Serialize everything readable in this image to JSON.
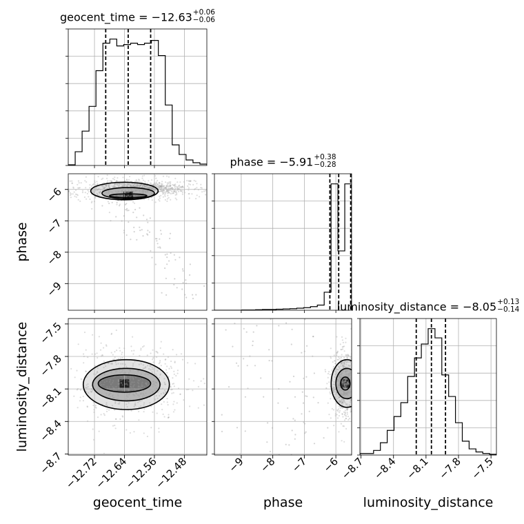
{
  "chart_data": {
    "type": "corner",
    "parameters": [
      {
        "name": "geocent_time",
        "axis_label": "geocent_time",
        "median": "−12.63",
        "plus": "+0.06",
        "minus": "−0.06",
        "title_prefix": "geocent_time = ",
        "quantiles": [
          -12.69,
          -12.63,
          -12.57
        ],
        "range": [
          -12.79,
          -12.42
        ],
        "ticks": [
          -12.72,
          -12.64,
          -12.56,
          -12.48
        ],
        "tick_labels": [
          "−12.72",
          "−12.64",
          "−12.56",
          "−12.48"
        ],
        "hist_bin_edges_range": [
          -12.79,
          -12.42
        ],
        "hist_counts": [
          0.05,
          1.0,
          2.5,
          4.3,
          6.9,
          8.9,
          9.2,
          8.7,
          8.8,
          8.9,
          8.8,
          8.9,
          9.1,
          8.0,
          4.4,
          1.5,
          0.8,
          0.4,
          0.2,
          0.1
        ]
      },
      {
        "name": "phase",
        "axis_label": "phase",
        "median": "−5.91",
        "plus": "+0.38",
        "minus": "−0.28",
        "title_prefix": "phase = ",
        "quantiles": [
          -6.19,
          -5.91,
          -5.53
        ],
        "range": [
          -9.85,
          -5.5
        ],
        "ticks": [
          -9,
          -8,
          -7,
          -6
        ],
        "tick_labels": [
          "−9",
          "−8",
          "−7",
          "−6"
        ],
        "hist_bin_edges_range": [
          -9.85,
          -5.5
        ],
        "hist_counts": [
          0,
          0,
          0,
          0,
          0.01,
          0.01,
          0.02,
          0.03,
          0.03,
          0.04,
          0.05,
          0.06,
          0.08,
          0.1,
          0.14,
          0.2,
          0.7,
          4.9,
          2.3,
          4.9
        ]
      },
      {
        "name": "luminosity_distance",
        "axis_label": "luminosity_distance",
        "median": "−8.05",
        "plus": "+0.13",
        "minus": "−0.14",
        "title_prefix": "luminosity_distance = ",
        "quantiles": [
          -8.19,
          -8.05,
          -7.92
        ],
        "range": [
          -8.71,
          -7.45
        ],
        "ticks": [
          -8.7,
          -8.4,
          -8.1,
          -7.8,
          -7.5
        ],
        "tick_labels": [
          "−8.7",
          "−8.4",
          "−8.1",
          "−7.8",
          "−7.5"
        ],
        "hist_bin_edges_range": [
          -8.71,
          -7.45
        ],
        "hist_counts": [
          0.1,
          0.1,
          0.3,
          0.8,
          1.6,
          2.5,
          3.4,
          5.1,
          6.3,
          7.2,
          8.2,
          7.6,
          5.2,
          3.8,
          2.1,
          0.9,
          0.4,
          0.2,
          0.1,
          0.05
        ]
      }
    ],
    "pairs": [
      {
        "x": "geocent_time",
        "y": "phase",
        "modes": [
          {
            "cx": -12.62,
            "cy": -6.0,
            "sx": 0.08,
            "sy": 0.14,
            "w": 1.0
          },
          {
            "cx": -12.58,
            "cy": -5.95,
            "sx": 0.03,
            "sy": 0.06,
            "w": 0.5
          }
        ],
        "tail": {
          "from": [
            -12.67,
            -6.2
          ],
          "to": [
            -12.45,
            -9.4
          ],
          "spread": 0.05,
          "n": 90
        },
        "contour_ellipses": [
          {
            "cx": -12.64,
            "cy": -6.05,
            "rx": 0.09,
            "ry": 0.28
          },
          {
            "cx": -12.63,
            "cy": -6.12,
            "rx": 0.07,
            "ry": 0.18
          },
          {
            "cx": -12.63,
            "cy": -6.2,
            "rx": 0.05,
            "ry": 0.06
          }
        ]
      },
      {
        "x": "geocent_time",
        "y": "luminosity_distance",
        "modes": [
          {
            "cx": -12.63,
            "cy": -8.06,
            "sx": 0.06,
            "sy": 0.13,
            "w": 1.0
          }
        ],
        "contour_ellipses": [
          {
            "cx": -12.635,
            "cy": -8.06,
            "rx": 0.115,
            "ry": 0.23
          },
          {
            "cx": -12.635,
            "cy": -8.06,
            "rx": 0.09,
            "ry": 0.15
          },
          {
            "cx": -12.64,
            "cy": -8.05,
            "rx": 0.07,
            "ry": 0.08
          }
        ]
      },
      {
        "x": "phase",
        "y": "luminosity_distance",
        "modes": [
          {
            "cx": -5.75,
            "cy": -8.06,
            "sx": 0.15,
            "sy": 0.12,
            "w": 1.0
          }
        ],
        "tail": {
          "from": [
            -9.6,
            -7.9
          ],
          "to": [
            -6.3,
            -8.1
          ],
          "spread": 0.35,
          "n": 120
        },
        "contour_ellipses": [
          {
            "cx": -5.65,
            "cy": -8.05,
            "rx": 0.5,
            "ry": 0.22
          },
          {
            "cx": -5.65,
            "cy": -8.05,
            "rx": 0.35,
            "ry": 0.14
          },
          {
            "cx": -5.7,
            "cy": -8.05,
            "rx": 0.15,
            "ry": 0.06
          }
        ]
      }
    ],
    "grid": true,
    "colors": {
      "line": "#000000",
      "grid": "#b0b0b0",
      "points": "#9e9e9e",
      "density_dark": "#222222",
      "density_light": "#dcdcdc"
    }
  }
}
